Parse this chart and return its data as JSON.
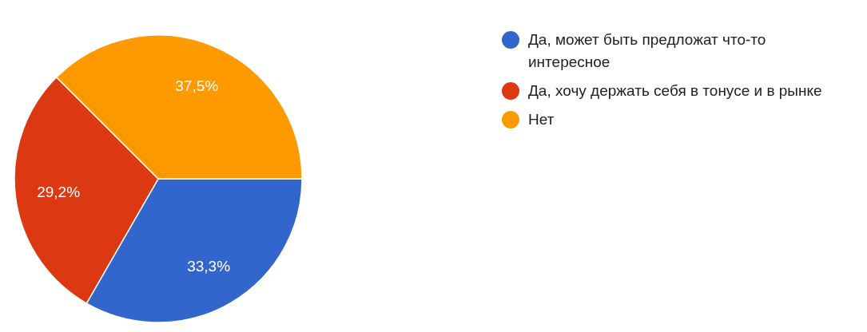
{
  "chart_data": {
    "type": "pie",
    "categories": [
      "Да, может быть предложат что-то интересное",
      "Да, хочу держать себя в тонусе и в рынке",
      "Нет"
    ],
    "values": [
      33.3,
      29.2,
      37.5
    ],
    "colors": [
      "#3366cc",
      "#dc3912",
      "#ff9900"
    ],
    "value_labels": [
      "33,3%",
      "29,2%",
      "37,5%"
    ],
    "legend": "right"
  }
}
